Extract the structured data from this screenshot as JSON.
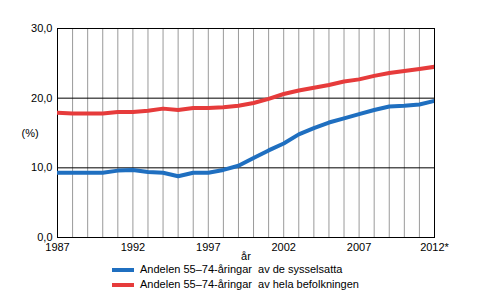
{
  "chart_data": {
    "type": "line",
    "x_label": "år",
    "y_label": "(%)",
    "x": [
      1987,
      1988,
      1989,
      1990,
      1991,
      1992,
      1993,
      1994,
      1995,
      1996,
      1997,
      1998,
      1999,
      2000,
      2001,
      2002,
      2003,
      2004,
      2005,
      2006,
      2007,
      2008,
      2009,
      2010,
      2011,
      2012
    ],
    "series": [
      {
        "name": "Andelen 55–74-åringar  av de sysselsatta",
        "color": "#1f6fc0",
        "values": [
          9.3,
          9.3,
          9.3,
          9.3,
          9.6,
          9.7,
          9.4,
          9.3,
          8.8,
          9.3,
          9.3,
          9.7,
          10.3,
          11.4,
          12.5,
          13.5,
          14.8,
          15.7,
          16.5,
          17.1,
          17.7,
          18.3,
          18.8,
          18.9,
          19.1,
          19.6
        ]
      },
      {
        "name": "Andelen 55–74-åringar  av hela befolkningen",
        "color": "#e63b3b",
        "values": [
          17.9,
          17.8,
          17.8,
          17.8,
          18.0,
          18.0,
          18.2,
          18.5,
          18.3,
          18.6,
          18.6,
          18.7,
          18.9,
          19.3,
          19.9,
          20.6,
          21.1,
          21.5,
          21.9,
          22.4,
          22.7,
          23.2,
          23.6,
          23.9,
          24.2,
          24.5
        ]
      }
    ],
    "xlim": [
      1987,
      2012
    ],
    "xticks": [
      1987,
      1992,
      1997,
      2002,
      2007,
      {
        "value": 2012,
        "label": "2012*"
      }
    ],
    "ylim": [
      0,
      30
    ],
    "yticks": [
      {
        "value": 0,
        "label": "0,0"
      },
      {
        "value": 10,
        "label": "10,0"
      },
      {
        "value": 20,
        "label": "20,0"
      },
      {
        "value": 30,
        "label": "30,0"
      }
    ],
    "grid": true,
    "legend": "bottom"
  }
}
